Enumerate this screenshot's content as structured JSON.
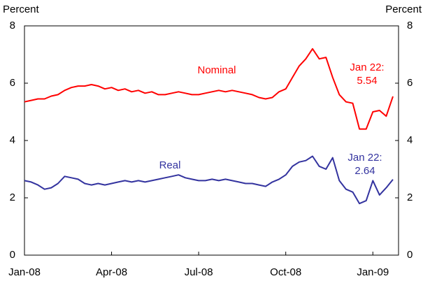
{
  "chart_data": {
    "type": "line",
    "y_label": "Percent",
    "y2_label": "Percent",
    "categories": [
      "Jan-08",
      null,
      null,
      null,
      null,
      null,
      null,
      null,
      null,
      null,
      null,
      null,
      null,
      "Apr-08",
      null,
      null,
      null,
      null,
      null,
      null,
      null,
      null,
      null,
      null,
      null,
      null,
      "Jul-08",
      null,
      null,
      null,
      null,
      null,
      null,
      null,
      null,
      null,
      null,
      null,
      null,
      "Oct-08",
      null,
      null,
      null,
      null,
      null,
      null,
      null,
      null,
      null,
      null,
      null,
      null,
      "Jan-09",
      null,
      null,
      null
    ],
    "series": [
      {
        "name": "Nominal",
        "color": "#ff0000",
        "values": [
          5.35,
          5.4,
          5.45,
          5.45,
          5.55,
          5.6,
          5.75,
          5.85,
          5.9,
          5.9,
          5.95,
          5.9,
          5.8,
          5.85,
          5.75,
          5.8,
          5.7,
          5.75,
          5.65,
          5.7,
          5.6,
          5.6,
          5.65,
          5.7,
          5.65,
          5.6,
          5.6,
          5.65,
          5.7,
          5.75,
          5.7,
          5.75,
          5.7,
          5.65,
          5.6,
          5.5,
          5.45,
          5.5,
          5.7,
          5.8,
          6.2,
          6.6,
          6.85,
          7.2,
          6.85,
          6.9,
          6.2,
          5.6,
          5.35,
          5.3,
          4.4,
          4.4,
          5.0,
          5.05,
          4.85,
          5.54
        ],
        "annotation": [
          "Jan 22:",
          "5.54"
        ]
      },
      {
        "name": "Real",
        "color": "#33339f",
        "values": [
          2.6,
          2.55,
          2.45,
          2.3,
          2.35,
          2.5,
          2.75,
          2.7,
          2.65,
          2.5,
          2.45,
          2.5,
          2.45,
          2.5,
          2.55,
          2.6,
          2.55,
          2.6,
          2.55,
          2.6,
          2.65,
          2.7,
          2.75,
          2.8,
          2.7,
          2.65,
          2.6,
          2.6,
          2.65,
          2.6,
          2.65,
          2.6,
          2.55,
          2.5,
          2.5,
          2.45,
          2.4,
          2.55,
          2.65,
          2.8,
          3.1,
          3.25,
          3.3,
          3.45,
          3.1,
          3.0,
          3.4,
          2.6,
          2.3,
          2.2,
          1.8,
          1.9,
          2.6,
          2.1,
          2.35,
          2.64
        ],
        "annotation": [
          "Jan 22:",
          "2.64"
        ]
      }
    ],
    "ylim": [
      0,
      8
    ],
    "yticks": [
      0,
      2,
      4,
      6,
      8
    ],
    "y2lim": [
      0,
      8
    ],
    "y2ticks": [
      0,
      2,
      4,
      6,
      8
    ],
    "grid": false
  }
}
